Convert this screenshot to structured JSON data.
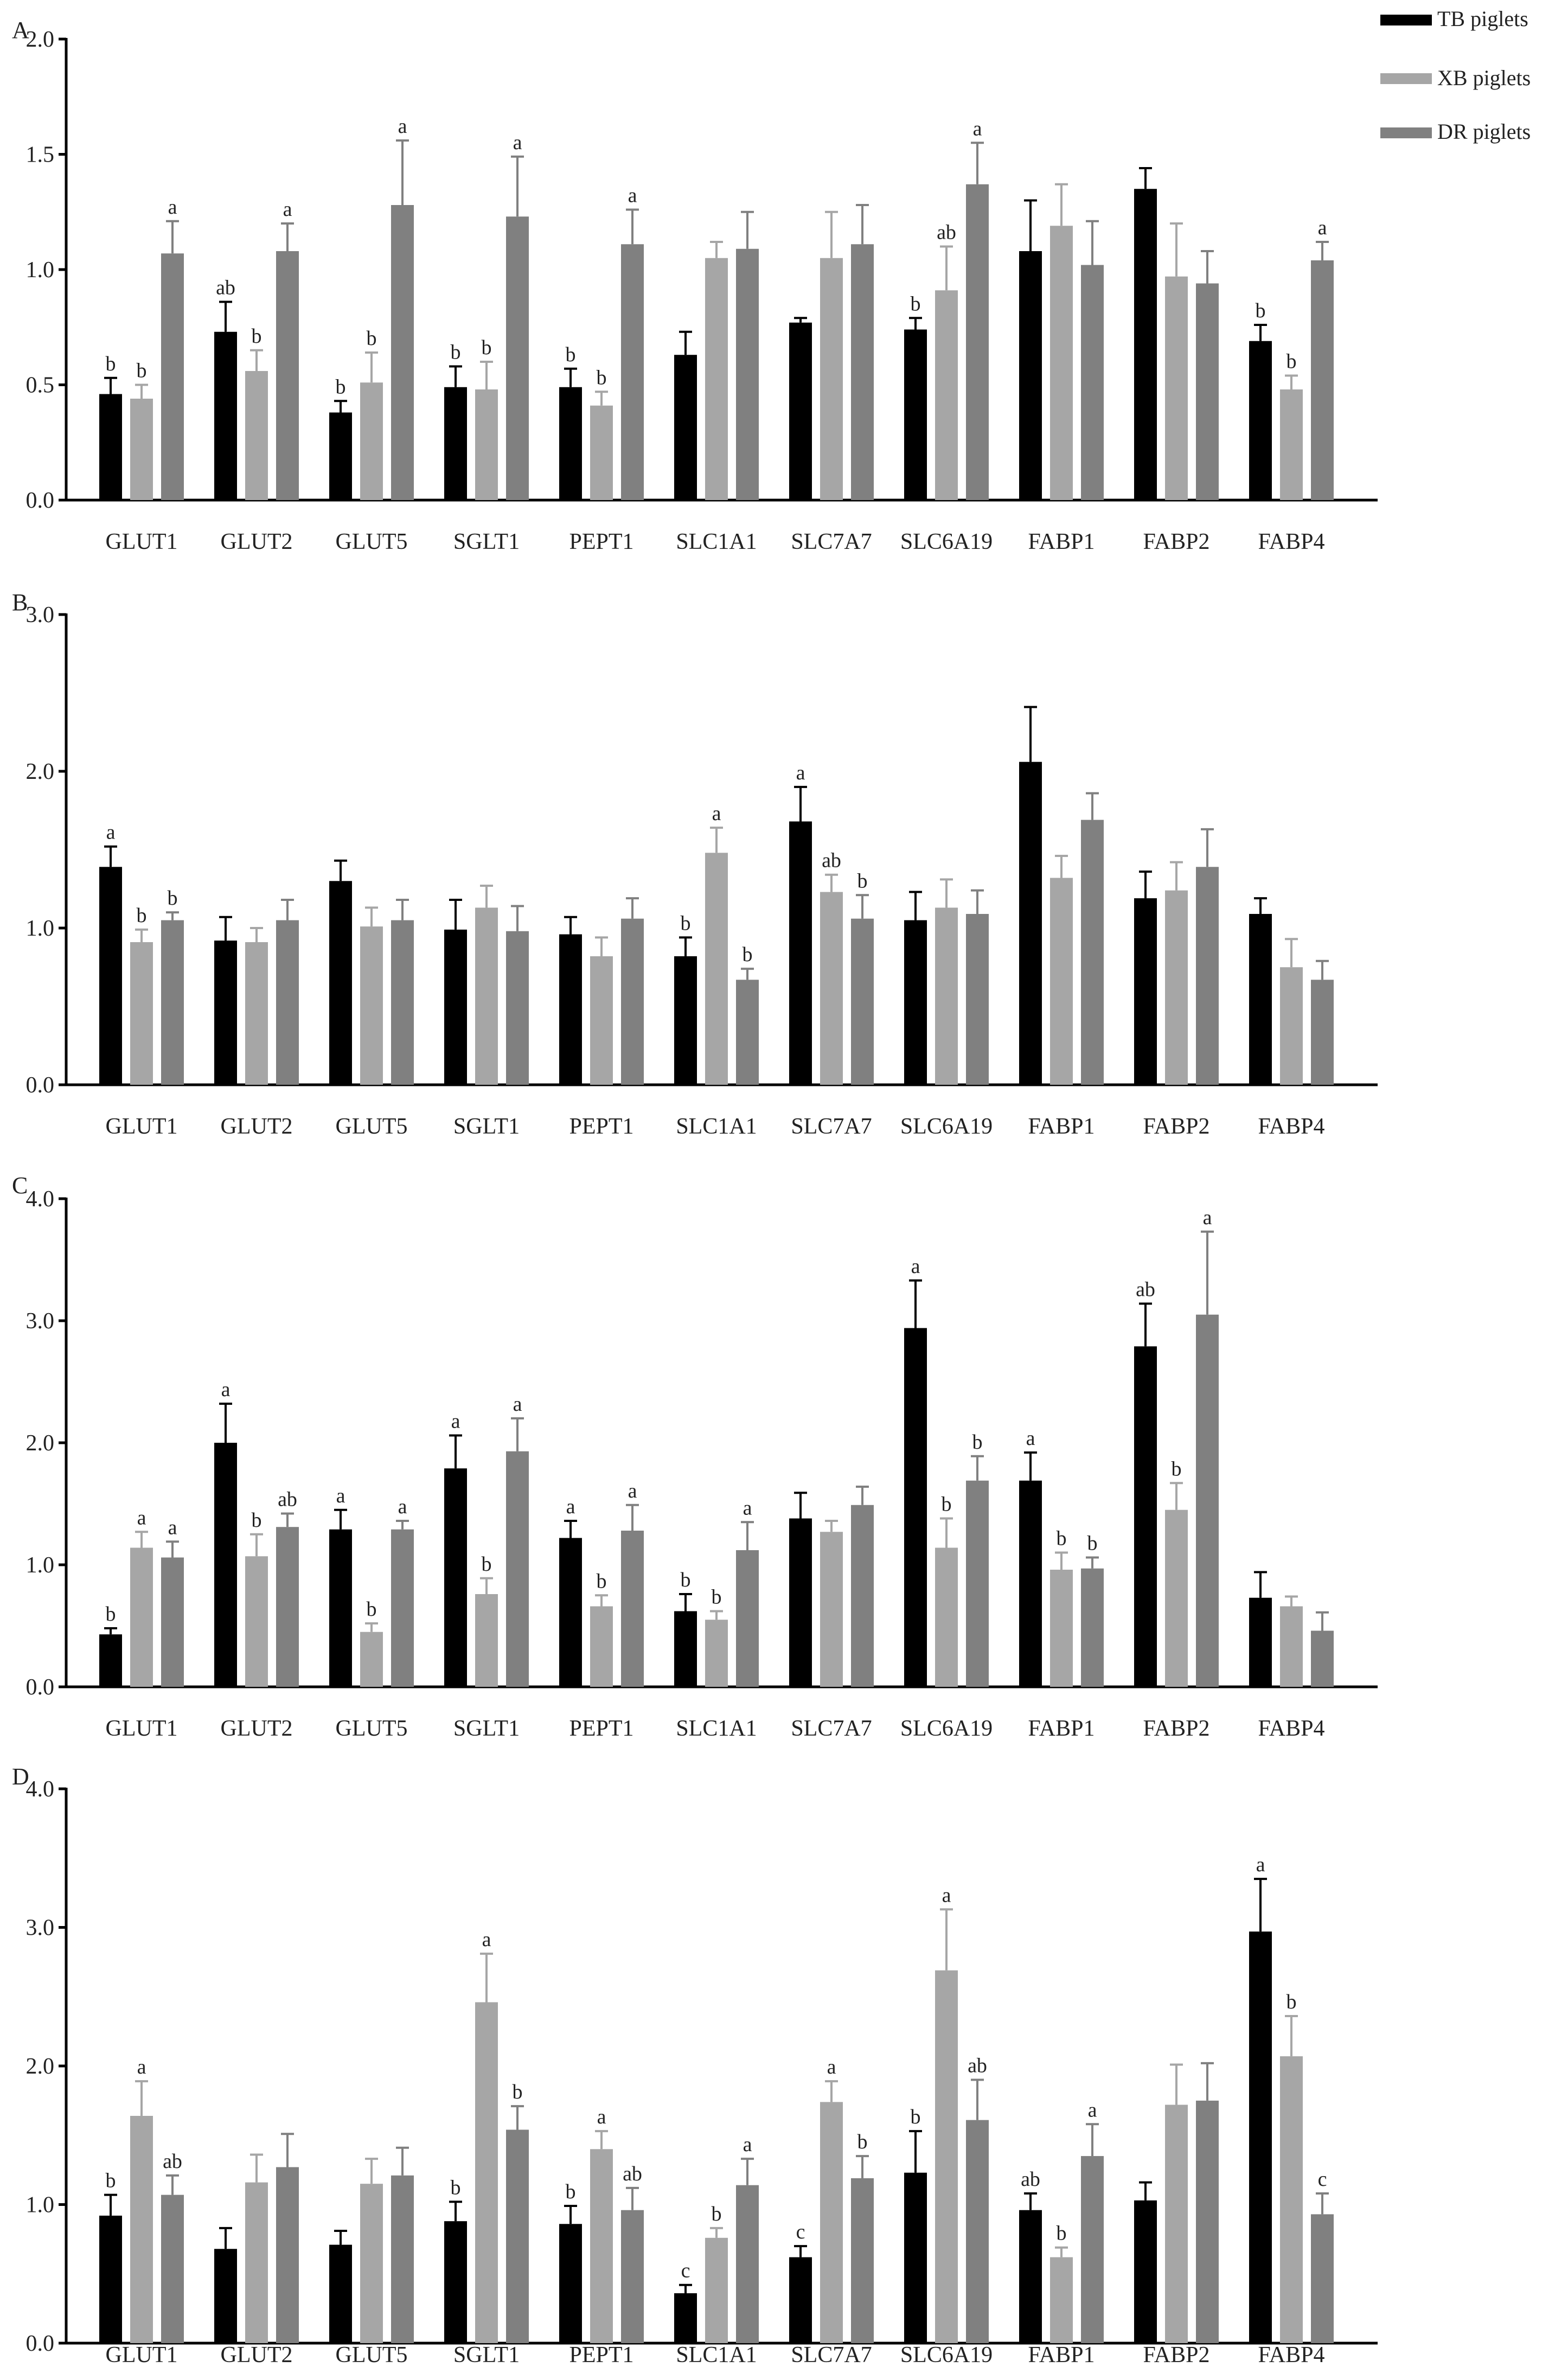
{
  "legend": {
    "items": [
      {
        "label": "TB piglets",
        "color": "#000000"
      },
      {
        "label": "XB piglets",
        "color": "#a6a6a6"
      },
      {
        "label": "DR piglets",
        "color": "#808080"
      }
    ],
    "position": "top-right"
  },
  "chart_data": [
    {
      "type": "bar",
      "panel_label": "A",
      "categories": [
        "GLUT1",
        "GLUT2",
        "GLUT5",
        "SGLT1",
        "PEPT1",
        "SLC1A1",
        "SLC7A7",
        "SLC6A19",
        "FABP1",
        "FABP2",
        "FABP4"
      ],
      "ylim": [
        0,
        2.0
      ],
      "yticks": [
        "0.0",
        "0.5",
        "1.0",
        "1.5",
        "2.0"
      ],
      "ytick_values": [
        0,
        0.5,
        1.0,
        1.5,
        2.0
      ],
      "series": [
        {
          "name": "TB piglets",
          "values": [
            0.46,
            0.73,
            0.38,
            0.49,
            0.49,
            0.63,
            0.77,
            0.74,
            1.08,
            1.35,
            0.69
          ],
          "errors": [
            0.07,
            0.13,
            0.05,
            0.09,
            0.08,
            0.1,
            0.02,
            0.05,
            0.22,
            0.09,
            0.07
          ],
          "letters": [
            "b",
            "ab",
            "b",
            "b",
            "b",
            "",
            "",
            "b",
            "",
            "",
            "b"
          ]
        },
        {
          "name": "XB piglets",
          "values": [
            0.44,
            0.56,
            0.51,
            0.48,
            0.41,
            1.05,
            1.05,
            0.91,
            1.19,
            0.97,
            0.48
          ],
          "errors": [
            0.06,
            0.09,
            0.13,
            0.12,
            0.06,
            0.07,
            0.2,
            0.19,
            0.18,
            0.23,
            0.06
          ],
          "letters": [
            "b",
            "b",
            "b",
            "b",
            "b",
            "",
            "",
            "ab",
            "",
            "",
            "b"
          ]
        },
        {
          "name": "DR piglets",
          "values": [
            1.07,
            1.08,
            1.28,
            1.23,
            1.11,
            1.09,
            1.11,
            1.37,
            1.02,
            0.94,
            1.04
          ],
          "errors": [
            0.14,
            0.12,
            0.28,
            0.26,
            0.15,
            0.16,
            0.17,
            0.18,
            0.19,
            0.14,
            0.08
          ],
          "letters": [
            "a",
            "a",
            "a",
            "a",
            "a",
            "",
            "",
            "a",
            "",
            "",
            "a"
          ]
        }
      ]
    },
    {
      "type": "bar",
      "panel_label": "B",
      "categories": [
        "GLUT1",
        "GLUT2",
        "GLUT5",
        "SGLT1",
        "PEPT1",
        "SLC1A1",
        "SLC7A7",
        "SLC6A19",
        "FABP1",
        "FABP2",
        "FABP4"
      ],
      "ylim": [
        0,
        3.0
      ],
      "yticks": [
        "0.0",
        "1.0",
        "2.0",
        "3.0"
      ],
      "ytick_values": [
        0,
        1.0,
        2.0,
        3.0
      ],
      "series": [
        {
          "name": "TB piglets",
          "values": [
            1.39,
            0.92,
            1.3,
            0.99,
            0.96,
            0.82,
            1.68,
            1.05,
            2.06,
            1.19,
            1.09
          ],
          "errors": [
            0.13,
            0.15,
            0.13,
            0.19,
            0.11,
            0.12,
            0.22,
            0.18,
            0.35,
            0.17,
            0.1
          ],
          "letters": [
            "a",
            "",
            "",
            "",
            "",
            "b",
            "a",
            "",
            "",
            "",
            ""
          ]
        },
        {
          "name": "XB piglets",
          "values": [
            0.91,
            0.91,
            1.01,
            1.13,
            0.82,
            1.48,
            1.23,
            1.13,
            1.32,
            1.24,
            0.75
          ],
          "errors": [
            0.08,
            0.09,
            0.12,
            0.14,
            0.12,
            0.16,
            0.11,
            0.18,
            0.14,
            0.18,
            0.18
          ],
          "letters": [
            "b",
            "",
            "",
            "",
            "",
            "a",
            "ab",
            "",
            "",
            "",
            ""
          ]
        },
        {
          "name": "DR piglets",
          "values": [
            1.05,
            1.05,
            1.05,
            0.98,
            1.06,
            0.67,
            1.06,
            1.09,
            1.69,
            1.39,
            0.67
          ],
          "errors": [
            0.05,
            0.13,
            0.13,
            0.16,
            0.13,
            0.07,
            0.15,
            0.15,
            0.17,
            0.24,
            0.12
          ],
          "letters": [
            "b",
            "",
            "",
            "",
            "",
            "b",
            "b",
            "",
            "",
            "",
            ""
          ]
        }
      ]
    },
    {
      "type": "bar",
      "panel_label": "C",
      "categories": [
        "GLUT1",
        "GLUT2",
        "GLUT5",
        "SGLT1",
        "PEPT1",
        "SLC1A1",
        "SLC7A7",
        "SLC6A19",
        "FABP1",
        "FABP2",
        "FABP4"
      ],
      "ylim": [
        0,
        4.0
      ],
      "yticks": [
        "0.0",
        "1.0",
        "2.0",
        "3.0",
        "4.0"
      ],
      "ytick_values": [
        0,
        1.0,
        2.0,
        3.0,
        4.0
      ],
      "series": [
        {
          "name": "TB piglets",
          "values": [
            0.43,
            2.0,
            1.29,
            1.79,
            1.22,
            0.62,
            1.38,
            2.94,
            1.69,
            2.79,
            0.73
          ],
          "errors": [
            0.05,
            0.32,
            0.16,
            0.27,
            0.14,
            0.14,
            0.21,
            0.39,
            0.23,
            0.35,
            0.21
          ],
          "letters": [
            "b",
            "a",
            "a",
            "a",
            "a",
            "b",
            "",
            "a",
            "a",
            "ab",
            ""
          ]
        },
        {
          "name": "XB piglets",
          "values": [
            1.14,
            1.07,
            0.45,
            0.76,
            0.66,
            0.55,
            1.27,
            1.14,
            0.96,
            1.45,
            0.66
          ],
          "errors": [
            0.13,
            0.18,
            0.07,
            0.13,
            0.09,
            0.07,
            0.09,
            0.24,
            0.14,
            0.22,
            0.08
          ],
          "letters": [
            "a",
            "b",
            "b",
            "b",
            "b",
            "b",
            "",
            "b",
            "b",
            "b",
            ""
          ]
        },
        {
          "name": "DR piglets",
          "values": [
            1.06,
            1.31,
            1.29,
            1.93,
            1.28,
            1.12,
            1.49,
            1.69,
            0.97,
            3.05,
            0.46
          ],
          "errors": [
            0.13,
            0.11,
            0.07,
            0.27,
            0.21,
            0.23,
            0.15,
            0.2,
            0.09,
            0.68,
            0.15
          ],
          "letters": [
            "a",
            "ab",
            "a",
            "a",
            "a",
            "a",
            "",
            "b",
            "b",
            "a",
            ""
          ]
        }
      ]
    },
    {
      "type": "bar",
      "panel_label": "D",
      "categories": [
        "GLUT1",
        "GLUT2",
        "GLUT5",
        "SGLT1",
        "PEPT1",
        "SLC1A1",
        "SLC7A7",
        "SLC6A19",
        "FABP1",
        "FABP2",
        "FABP4"
      ],
      "ylim": [
        0,
        4.0
      ],
      "yticks": [
        "0.0",
        "1.0",
        "2.0",
        "3.0",
        "4.0"
      ],
      "ytick_values": [
        0,
        1.0,
        2.0,
        3.0,
        4.0
      ],
      "series": [
        {
          "name": "TB piglets",
          "values": [
            0.92,
            0.68,
            0.71,
            0.88,
            0.86,
            0.36,
            0.62,
            1.23,
            0.96,
            1.03,
            2.97
          ],
          "errors": [
            0.15,
            0.15,
            0.1,
            0.14,
            0.13,
            0.06,
            0.08,
            0.3,
            0.12,
            0.13,
            0.38
          ],
          "letters": [
            "b",
            "",
            "",
            "b",
            "b",
            "c",
            "c",
            "b",
            "ab",
            "",
            "a"
          ]
        },
        {
          "name": "XB piglets",
          "values": [
            1.64,
            1.16,
            1.15,
            2.46,
            1.4,
            0.76,
            1.74,
            2.69,
            0.62,
            1.72,
            2.07
          ],
          "errors": [
            0.25,
            0.2,
            0.18,
            0.35,
            0.13,
            0.07,
            0.15,
            0.44,
            0.07,
            0.29,
            0.29
          ],
          "letters": [
            "a",
            "",
            "",
            "a",
            "a",
            "b",
            "a",
            "a",
            "b",
            "",
            "b"
          ]
        },
        {
          "name": "DR piglets",
          "values": [
            1.07,
            1.27,
            1.21,
            1.54,
            0.96,
            1.14,
            1.19,
            1.61,
            1.35,
            1.75,
            0.93
          ],
          "errors": [
            0.14,
            0.24,
            0.2,
            0.17,
            0.16,
            0.19,
            0.16,
            0.29,
            0.23,
            0.27,
            0.15
          ],
          "letters": [
            "ab",
            "",
            "",
            "b",
            "ab",
            "a",
            "b",
            "ab",
            "a",
            "",
            "c"
          ]
        }
      ]
    }
  ]
}
